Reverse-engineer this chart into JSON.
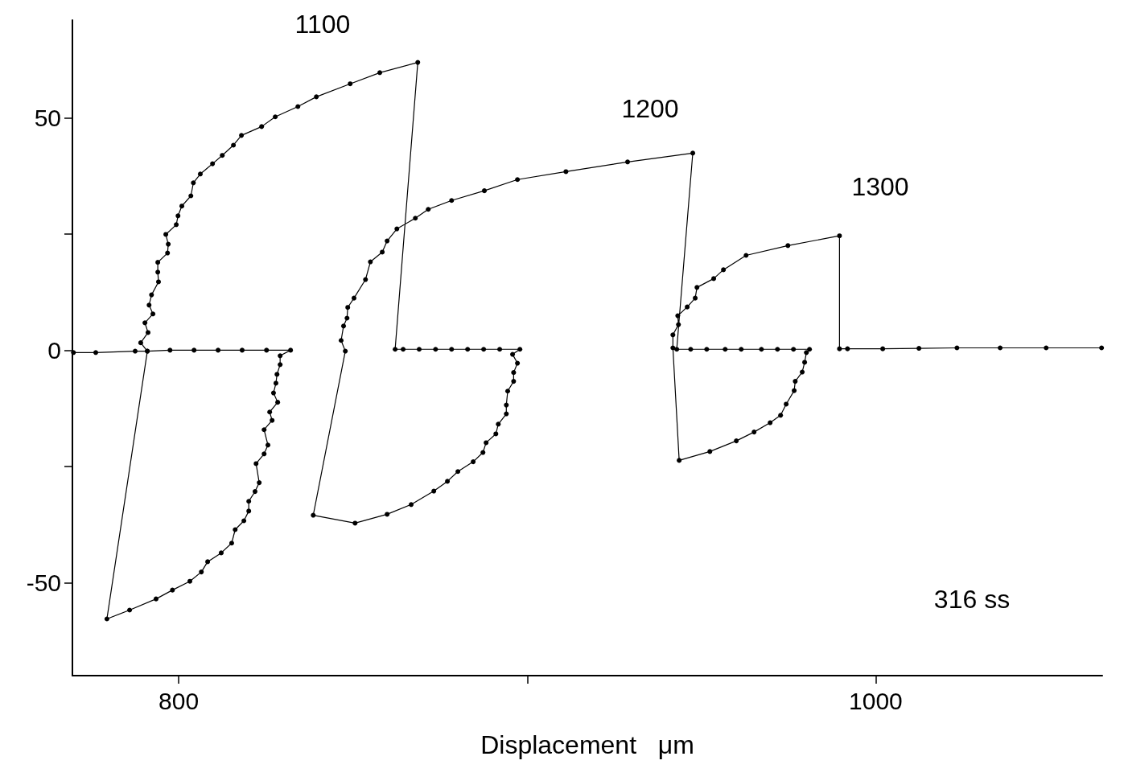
{
  "chart_data": {
    "type": "line",
    "xlabel": "Displacement   μm",
    "xlim": [
      769.5,
      1065
    ],
    "xticks": [
      800,
      {
        "value": 900,
        "label": null
      },
      1000
    ],
    "ylim": [
      -70,
      71
    ],
    "yticks": [
      -50,
      {
        "value": -25,
        "label": null
      },
      0,
      {
        "value": 25,
        "label": null
      },
      50
    ],
    "grid": false,
    "marker": "circle",
    "line_style": "solid",
    "series": [
      {
        "color": "#000000",
        "x": [
          769.8,
          776.2,
          787.5,
          791.0,
          797.5,
          804.4,
          811.3,
          818.2,
          825.2,
          832.1,
          829.1,
          829.1,
          828.2,
          827.9,
          827.2,
          828.4,
          826.1,
          826.8,
          824.5,
          825.6,
          824.5,
          822.2,
          823.1,
          821.9,
          820.1,
          820.1,
          818.7,
          816.2,
          815.2,
          812.2,
          808.3,
          806.5,
          803.2,
          798.2,
          793.5,
          785.9,
          779.4,
          791.0,
          789.1,
          791.2,
          790.3,
          792.6,
          791.5,
          792.2,
          794.2,
          794.0,
          794.0,
          796.8,
          797.0,
          796.3,
          799.3,
          799.8,
          800.9,
          803.5,
          804.2,
          806.2,
          809.7,
          812.5,
          815.7,
          818.0,
          823.8,
          827.7,
          834.2,
          839.5,
          849.2,
          857.7,
          868.6,
          862.1,
          864.4,
          869.0,
          873.7,
          878.3,
          882.9,
          887.5,
          892.1,
          897.9,
          895.8,
          897.2,
          896.1,
          896.1,
          894.4,
          894.0,
          894.0,
          891.7,
          891.0,
          888.2,
          887.3,
          884.5,
          880.1,
          877.1,
          873.2,
          866.7,
          859.8,
          850.6,
          838.6,
          847.8,
          846.6,
          847.3,
          848.3,
          848.5,
          850.3,
          853.6,
          855.0,
          858.4,
          859.8,
          862.6,
          867.9,
          871.6,
          878.3,
          887.7,
          897.2,
          911.1,
          928.8,
          947.5,
          942.9,
          946.9,
          951.5,
          956.8,
          961.4,
          967.2,
          971.8,
          976.4,
          981.0,
          980.1,
          979.6,
          978.9,
          976.9,
          976.6,
          974.3,
          972.7,
          969.7,
          965.1,
          960.0,
          952.4,
          943.6,
          941.8,
          941.8,
          943.4,
          943.2,
          945.9,
          948.2,
          948.7,
          953.5,
          956.3,
          962.8,
          974.8,
          989.6,
          989.6,
          991.9,
          1002.0,
          1012.4,
          1023.3,
          1035.7,
          1048.9,
          1064.8
        ],
        "values": [
          -0.5,
          -0.5,
          -0.2,
          -0.2,
          0,
          0,
          0,
          0,
          0,
          0,
          -1.2,
          -3.1,
          -5.2,
          -7.1,
          -9.2,
          -11.2,
          -13.3,
          -15.1,
          -17.1,
          -20.4,
          -22.3,
          -24.4,
          -28.5,
          -30.4,
          -32.5,
          -34.6,
          -36.7,
          -38.6,
          -41.5,
          -43.6,
          -45.5,
          -47.7,
          -49.7,
          -51.6,
          -53.5,
          -55.9,
          -57.8,
          -0.2,
          1.6,
          3.8,
          5.9,
          7.8,
          9.7,
          11.9,
          14.7,
          16.8,
          18.9,
          20.9,
          22.8,
          24.9,
          27.0,
          28.9,
          31.0,
          33.2,
          36.0,
          37.9,
          40.1,
          41.9,
          44.1,
          46.2,
          48.1,
          50.2,
          52.4,
          54.5,
          57.3,
          59.7,
          61.9,
          0.2,
          0.2,
          0.2,
          0.2,
          0.2,
          0.2,
          0.2,
          0.2,
          0.2,
          -0.9,
          -2.8,
          -4.8,
          -6.7,
          -8.8,
          -11.8,
          -13.7,
          -15.9,
          -18.0,
          -19.9,
          -22.0,
          -24.0,
          -26.1,
          -28.2,
          -30.3,
          -33.2,
          -35.3,
          -37.2,
          -35.5,
          -0.2,
          2.1,
          5.2,
          6.9,
          9.2,
          11.2,
          15.2,
          19.0,
          21.1,
          23.5,
          26.1,
          28.4,
          30.3,
          32.2,
          34.3,
          36.7,
          38.4,
          40.5,
          42.4,
          0.2,
          0.2,
          0.2,
          0.2,
          0.2,
          0.2,
          0.2,
          0.2,
          0.2,
          -0.5,
          -2.6,
          -4.7,
          -6.7,
          -8.7,
          -11.6,
          -14.0,
          -15.6,
          -17.6,
          -19.5,
          -21.8,
          -23.7,
          0.5,
          3.3,
          5.5,
          7.4,
          9.3,
          11.2,
          13.5,
          15.4,
          17.3,
          20.4,
          22.5,
          24.6,
          0.3,
          0.3,
          0.3,
          0.4,
          0.5,
          0.5,
          0.5,
          0.5
        ]
      }
    ],
    "annotations": [
      "1100",
      "1200",
      "1300",
      "316 ss"
    ]
  }
}
